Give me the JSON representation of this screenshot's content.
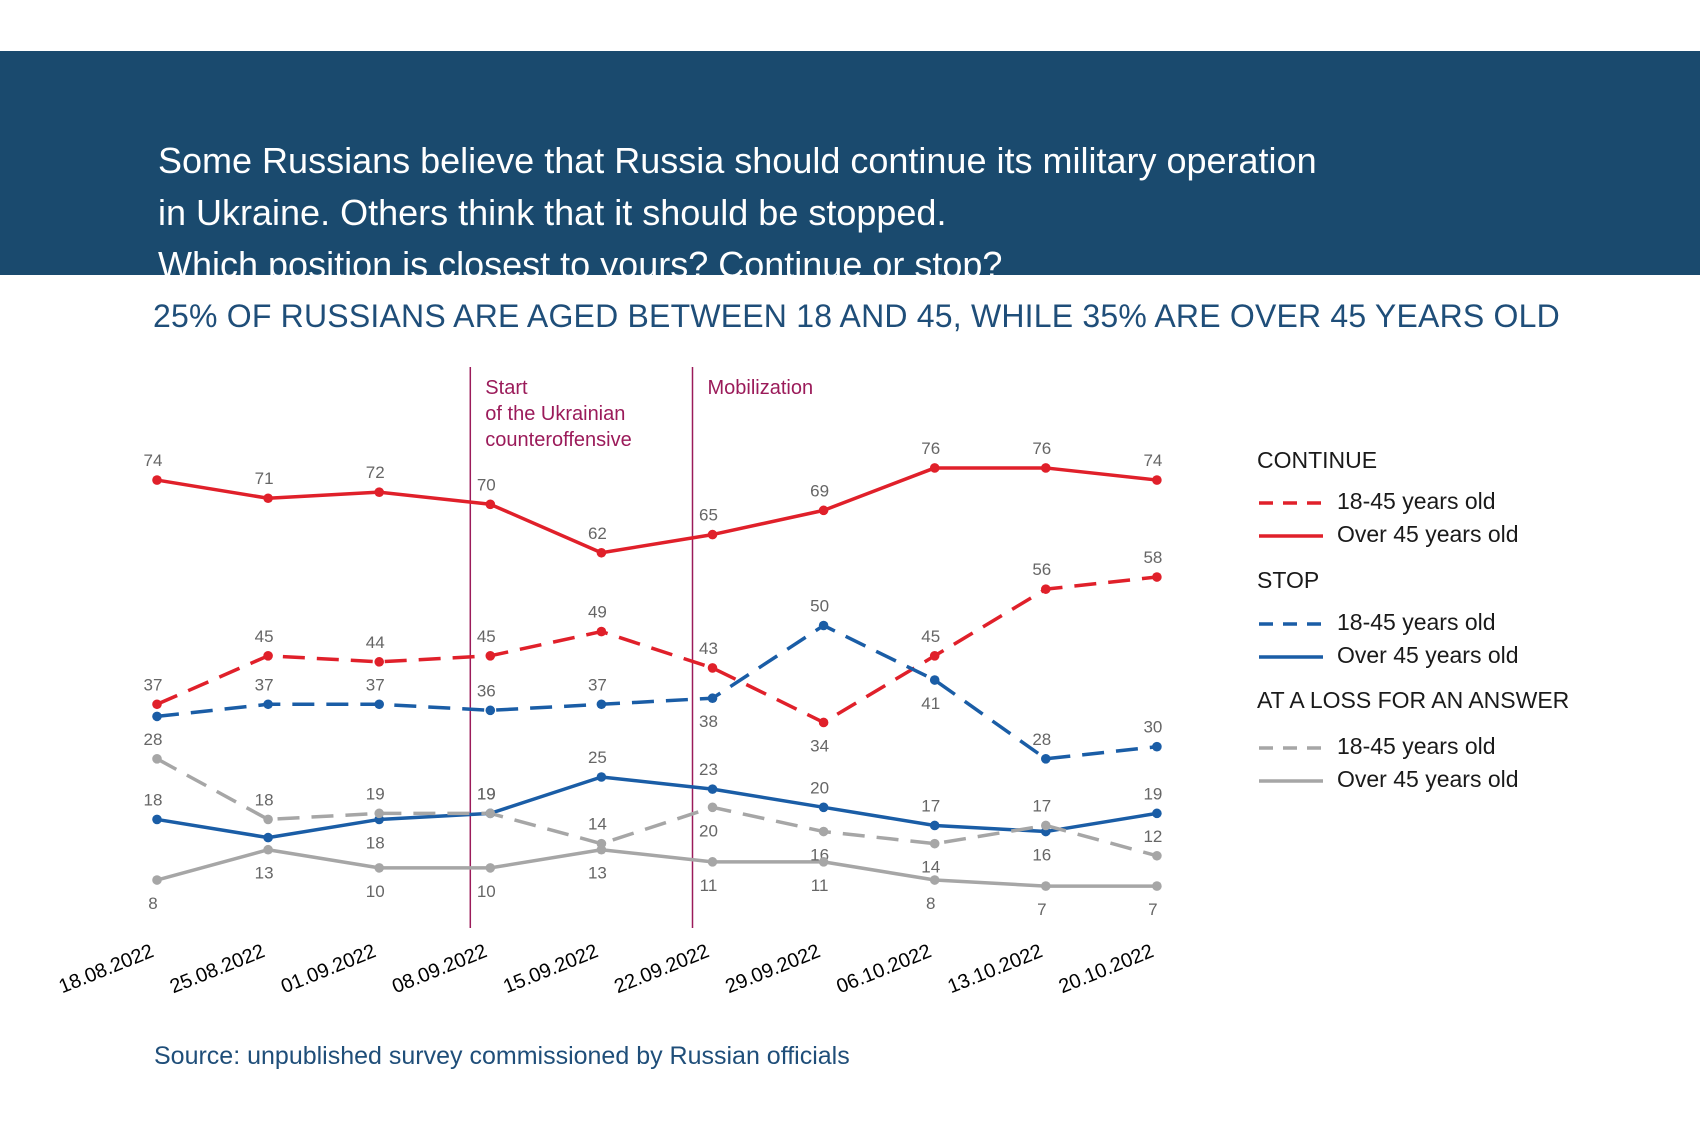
{
  "header": {
    "question": "Some Russians believe that Russia should continue its military operation\nin Ukraine. Others think that it should be stopped.\n Which position is closest to yours? Continue or stop?"
  },
  "subtitle": "25% OF RUSSIANS ARE AGED BETWEEN 18 AND 45, WHILE 35% ARE OVER 45 YEARS OLD",
  "source": "Source: unpublished survey commissioned by Russian officials",
  "colors": {
    "red": "#e0202a",
    "blue": "#1a5da6",
    "gray": "#a6a6a6",
    "event": "#9b1b5a",
    "banner": "#1a4a6e"
  },
  "legend": {
    "groups": [
      {
        "heading": "CONTINUE",
        "items": [
          {
            "label": "18-45 years old",
            "color": "#e0202a",
            "dash": true
          },
          {
            "label": "Over 45 years old",
            "color": "#e0202a",
            "dash": false
          }
        ]
      },
      {
        "heading": "STOP",
        "items": [
          {
            "label": "18-45 years old",
            "color": "#1a5da6",
            "dash": true
          },
          {
            "label": "Over 45 years old",
            "color": "#1a5da6",
            "dash": false
          }
        ]
      },
      {
        "heading": "AT A LOSS FOR AN ANSWER",
        "items": [
          {
            "label": "18-45 years old",
            "color": "#a6a6a6",
            "dash": true
          },
          {
            "label": "Over 45 years old",
            "color": "#a6a6a6",
            "dash": false
          }
        ]
      }
    ]
  },
  "chart_data": {
    "type": "line",
    "x": [
      "18.08.2022",
      "25.08.2022",
      "01.09.2022",
      "08.09.2022",
      "15.09.2022",
      "22.09.2022",
      "29.09.2022",
      "06.10.2022",
      "13.10.2022",
      "20.10.2022"
    ],
    "ylim": [
      0,
      100
    ],
    "grid": false,
    "legend_position": "right",
    "series": [
      {
        "name": "CONTINUE 18-45 years old",
        "color": "#e0202a",
        "dash": true,
        "values": [
          37,
          45,
          44,
          45,
          49,
          43,
          34,
          45,
          56,
          58
        ],
        "label_side": [
          "above",
          "above",
          "above",
          "above",
          "above",
          "above",
          "below",
          "above",
          "above",
          "above"
        ]
      },
      {
        "name": "CONTINUE Over 45 years old",
        "color": "#e0202a",
        "dash": false,
        "values": [
          74,
          71,
          72,
          70,
          62,
          65,
          69,
          76,
          76,
          74
        ],
        "label_side": [
          "above",
          "above",
          "above",
          "above",
          "above",
          "above",
          "above",
          "above",
          "above",
          "above"
        ]
      },
      {
        "name": "STOP 18-45 years old",
        "color": "#1a5da6",
        "dash": true,
        "values": [
          35,
          37,
          37,
          36,
          37,
          38,
          50,
          41,
          28,
          30
        ],
        "labels": [
          "",
          "37",
          "37",
          "36",
          "37",
          "38",
          "50",
          "41",
          "28",
          "30"
        ],
        "label_side": [
          "above",
          "above",
          "above",
          "above",
          "above",
          "below",
          "above",
          "below",
          "above",
          "above"
        ]
      },
      {
        "name": "STOP Over 45 years old",
        "color": "#1a5da6",
        "dash": false,
        "values": [
          18,
          15,
          18,
          19,
          25,
          23,
          20,
          17,
          16,
          19
        ],
        "labels": [
          "18",
          "",
          "18",
          "19",
          "25",
          "23",
          "20",
          "17",
          "16",
          "19"
        ],
        "label_side": [
          "above",
          "above",
          "below",
          "above",
          "above",
          "above",
          "above",
          "above",
          "below",
          "above"
        ]
      },
      {
        "name": "AT A LOSS FOR AN ANSWER 18-45 years old",
        "color": "#a6a6a6",
        "dash": true,
        "values": [
          28,
          18,
          19,
          19,
          14,
          20,
          16,
          14,
          17,
          12
        ],
        "label_side": [
          "above",
          "above",
          "above",
          "above",
          "above",
          "below",
          "below",
          "below",
          "above",
          "above"
        ]
      },
      {
        "name": "AT A LOSS FOR AN ANSWER Over 45 years old",
        "color": "#a6a6a6",
        "dash": false,
        "values": [
          8,
          13,
          10,
          10,
          13,
          11,
          11,
          8,
          7,
          7
        ],
        "label_side": [
          "below",
          "below",
          "below",
          "below",
          "below",
          "below",
          "below",
          "below",
          "below",
          "below"
        ]
      }
    ],
    "annotations": [
      {
        "text": "Start\nof the Ukrainian\ncounteroffensive",
        "between": [
          "01.09.2022",
          "08.09.2022"
        ]
      },
      {
        "text": "Mobilization",
        "between": [
          "15.09.2022",
          "22.09.2022"
        ]
      }
    ]
  }
}
